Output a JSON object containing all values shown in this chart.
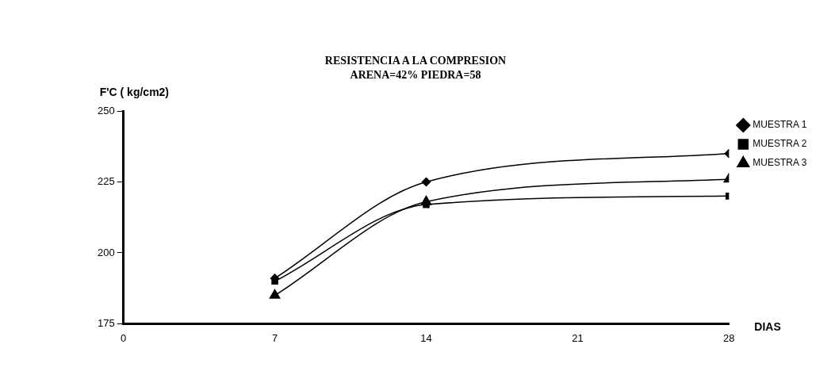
{
  "chart_data": {
    "type": "line",
    "title": "RESISTENCIA A LA COMPRESION",
    "subtitle": "ARENA=42%    PIEDRA=58",
    "xlabel": "DIAS",
    "ylabel": "F'C ( kg/cm2)",
    "x": [
      7,
      14,
      28
    ],
    "series": [
      {
        "name": "MUESTRA 1",
        "color": "#000000",
        "marker": "diamond",
        "values": [
          191,
          225,
          235
        ]
      },
      {
        "name": "MUESTRA 2",
        "color": "#000000",
        "marker": "square",
        "values": [
          190,
          217,
          220
        ]
      },
      {
        "name": "MUESTRA 3",
        "color": "#000000",
        "marker": "triangle",
        "values": [
          185,
          218,
          226
        ]
      }
    ],
    "xlim": [
      0,
      28
    ],
    "xticks": [
      0,
      7,
      14,
      21,
      28
    ],
    "ylim": [
      175,
      250
    ],
    "yticks": [
      175,
      200,
      225,
      250
    ],
    "grid": false,
    "legend": "right",
    "line_style": "solid"
  }
}
